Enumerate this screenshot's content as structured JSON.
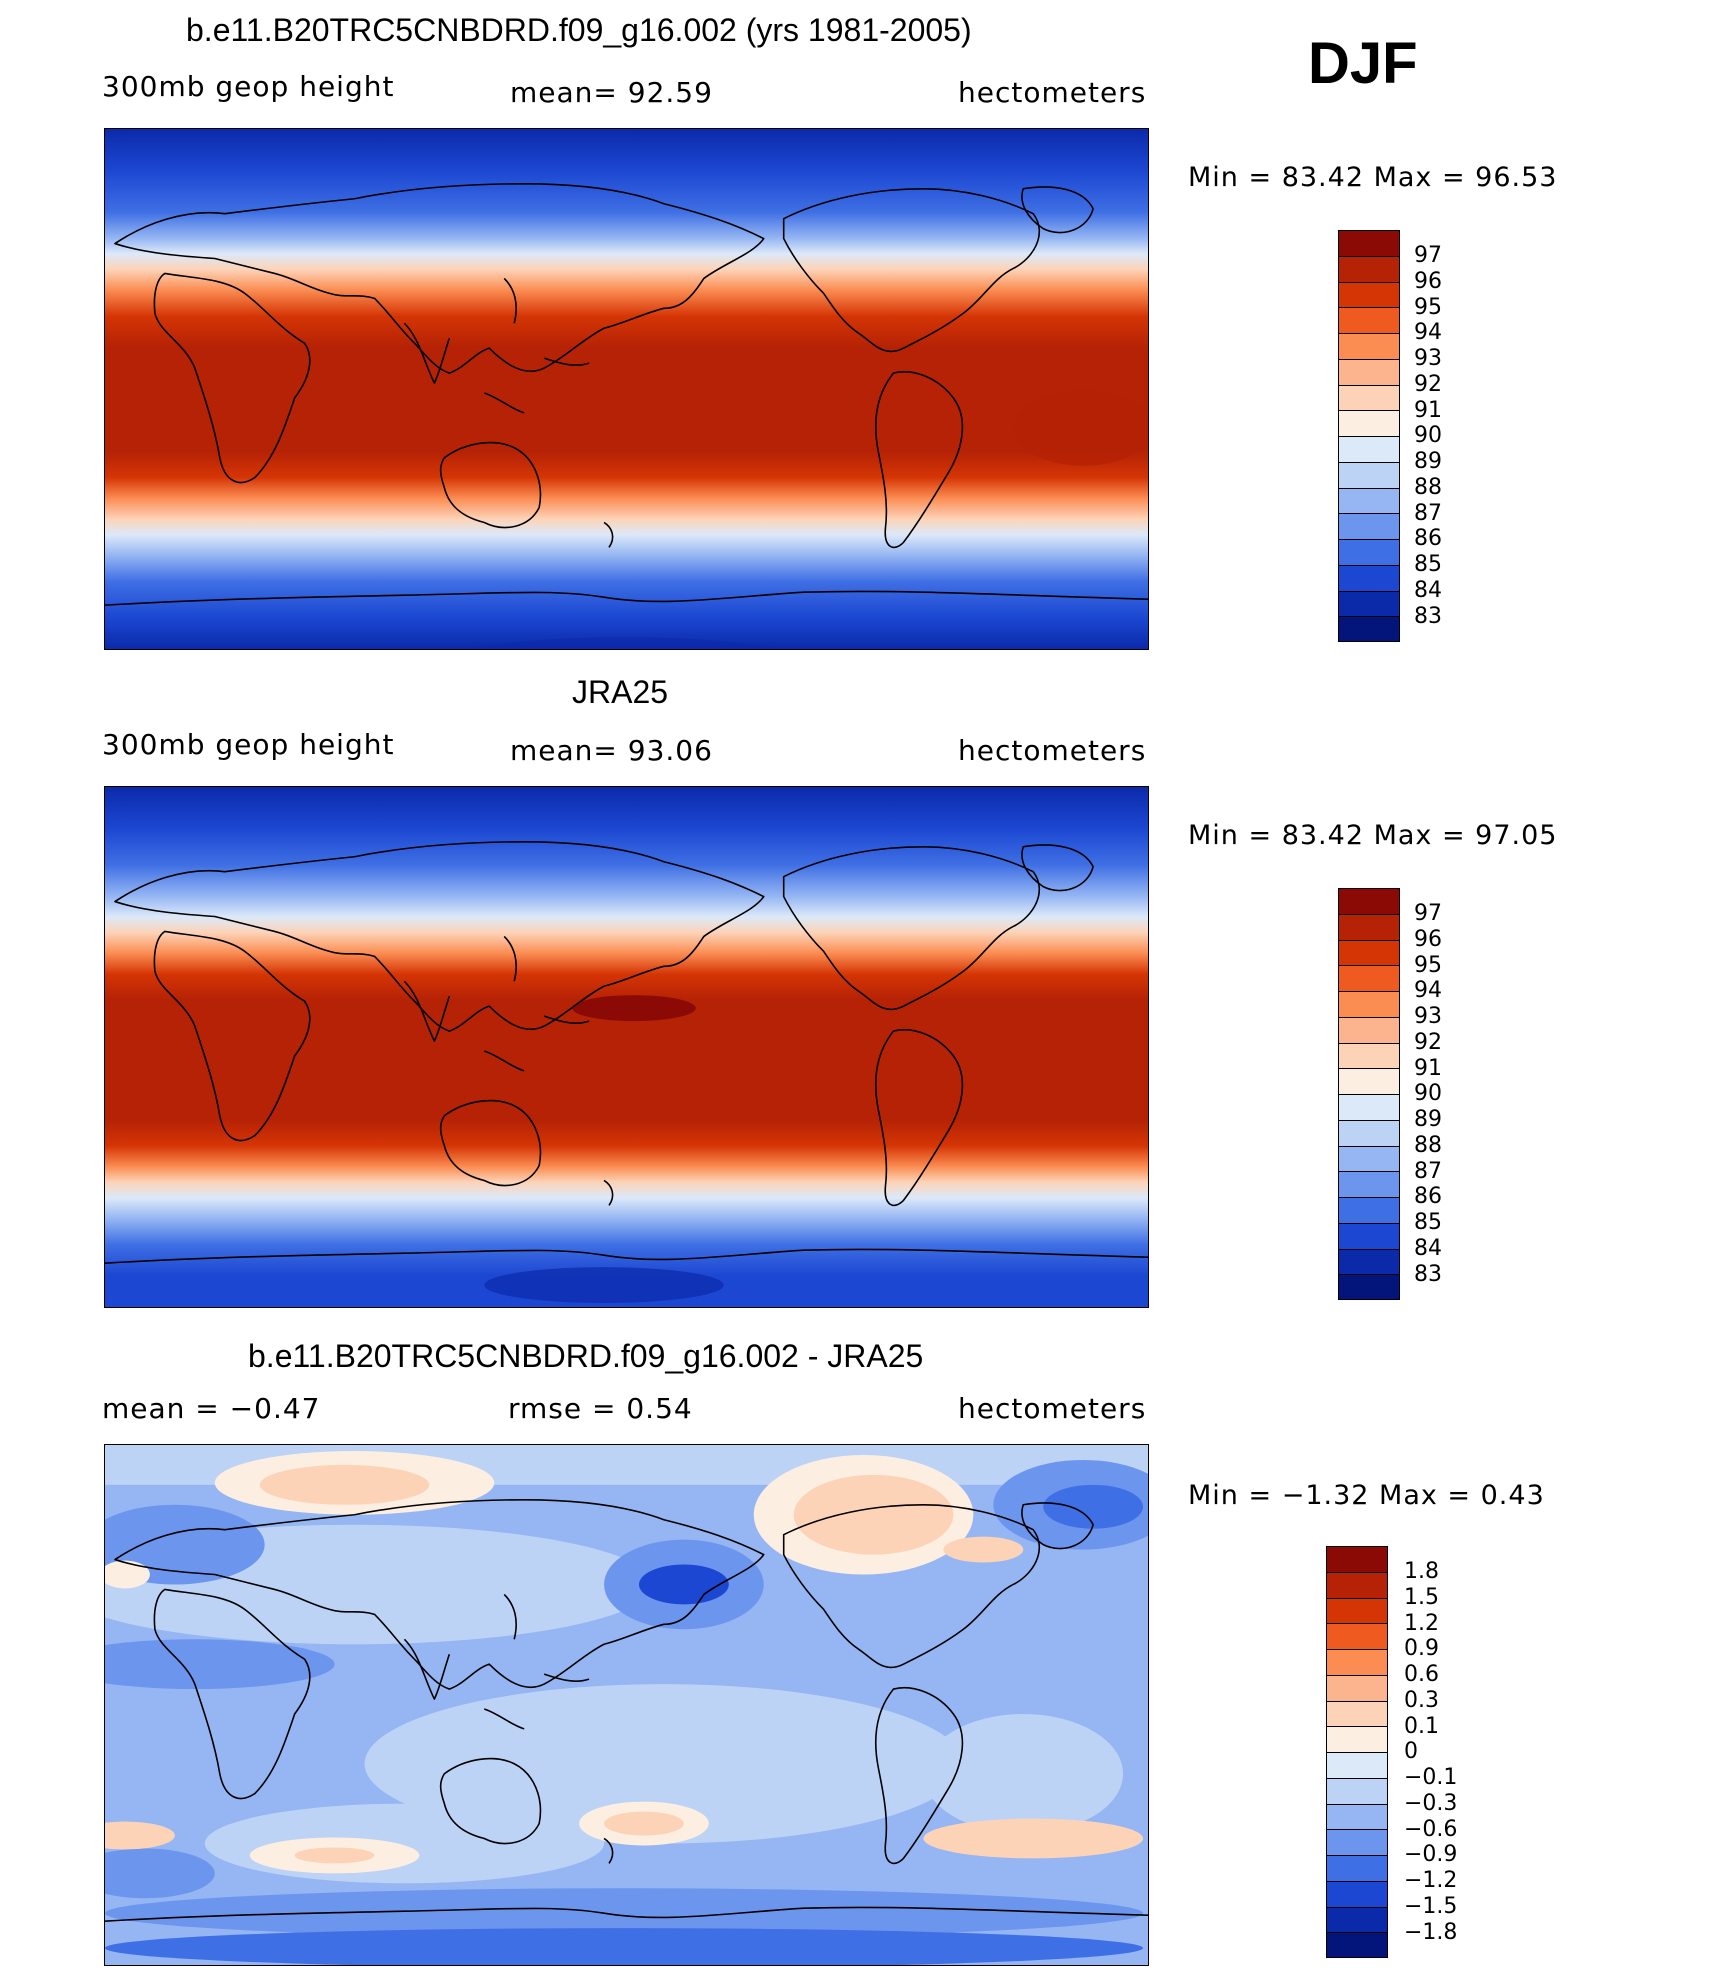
{
  "season": "DJF",
  "panels": [
    {
      "title": "b.e11.B20TRC5CNBDRD.f09_g16.002 (yrs 1981-2005)",
      "left_label": "300mb  geop  height",
      "mid_label": "mean=   92.59",
      "right_label": "hectometers",
      "min_max": "Min  =    83.42  Max  =    96.53",
      "colorbar_ticks": [
        "97",
        "96",
        "95",
        "94",
        "93",
        "92",
        "91",
        "90",
        "89",
        "88",
        "87",
        "86",
        "85",
        "84",
        "83"
      ]
    },
    {
      "title": "JRA25",
      "left_label": "300mb  geop  height",
      "mid_label": "mean=   93.06",
      "right_label": "hectometers",
      "min_max": "Min  =    83.42  Max  =    97.05",
      "colorbar_ticks": [
        "97",
        "96",
        "95",
        "94",
        "93",
        "92",
        "91",
        "90",
        "89",
        "88",
        "87",
        "86",
        "85",
        "84",
        "83"
      ]
    },
    {
      "title": "b.e11.B20TRC5CNBDRD.f09_g16.002 - JRA25",
      "left_label": "mean  =    −0.47",
      "mid_label": "rmse  =     0.54",
      "right_label": "hectometers",
      "min_max": "Min  =   −1.32  Max  =     0.43",
      "colorbar_ticks": [
        "1.8",
        "1.5",
        "1.2",
        "0.9",
        "0.6",
        "0.3",
        "0.1",
        "0",
        "−0.1",
        "−0.3",
        "−0.6",
        "−0.9",
        "−1.2",
        "−1.5",
        "−1.8"
      ]
    }
  ],
  "colorbar_colors": [
    "#8b0a05",
    "#b52205",
    "#d53505",
    "#ee5a20",
    "#fb8c52",
    "#fcb48e",
    "#fdd3b8",
    "#fdeee2",
    "#dce9f9",
    "#bcd3f6",
    "#95b6f3",
    "#6c95ee",
    "#3f6fe4",
    "#1c47d2",
    "#0b2aaa",
    "#03157b"
  ]
}
